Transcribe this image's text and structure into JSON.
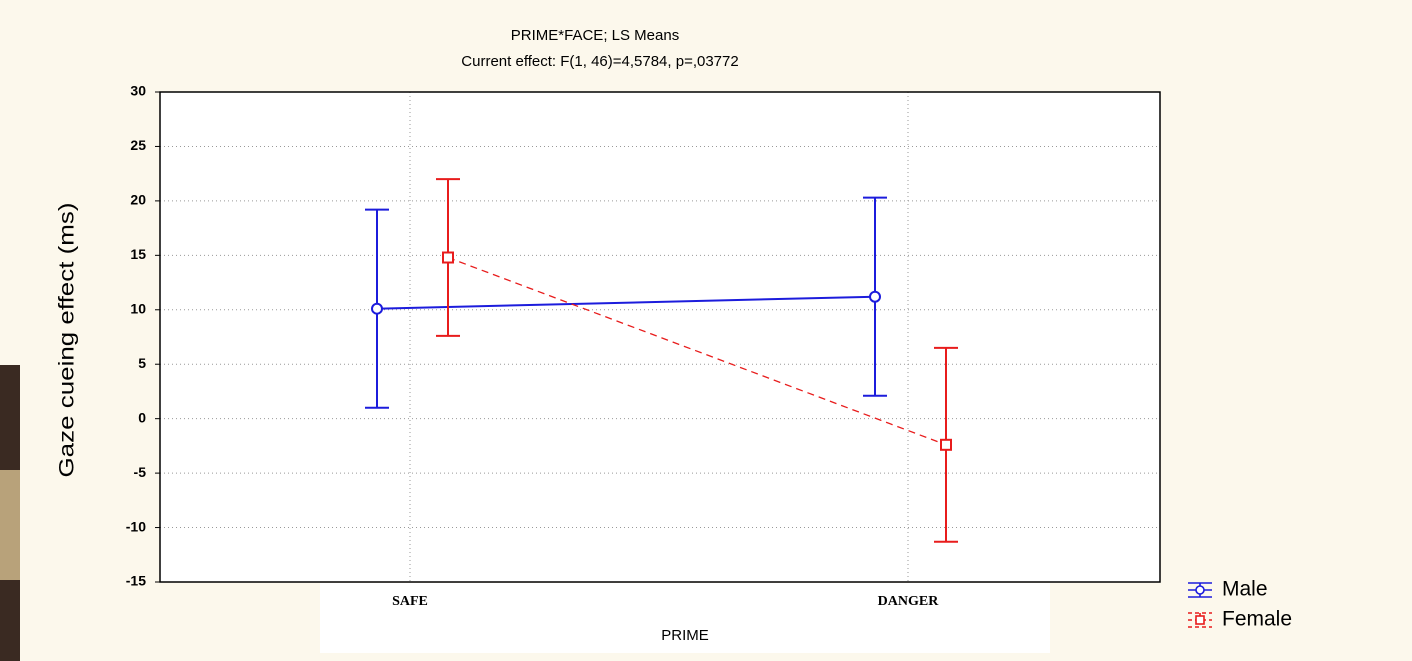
{
  "chart_data": {
    "type": "line",
    "title": "PRIME*FACE; LS Means",
    "subtitle": "Current effect: F(1, 46)=4,5784, p=,03772",
    "x_label": "PRIME",
    "y_label": "Gaze cueing effect (ms)",
    "categories": [
      "SAFE",
      "DANGER"
    ],
    "series": [
      {
        "name": "Male",
        "color": "#1c1cdc",
        "line_style": "solid",
        "marker": "circle",
        "values": [
          10.1,
          11.2
        ],
        "errors": [
          9.1,
          9.1
        ]
      },
      {
        "name": "Female",
        "color": "#e81c1c",
        "line_style": "dashed",
        "marker": "square",
        "values": [
          14.8,
          -2.4
        ],
        "errors": [
          7.2,
          8.9
        ]
      }
    ],
    "ylim": [
      -15,
      30
    ],
    "yticks": [
      -15,
      -10,
      -5,
      0,
      5,
      10,
      15,
      20,
      25,
      30
    ],
    "grid": true,
    "legend": "lower right"
  }
}
